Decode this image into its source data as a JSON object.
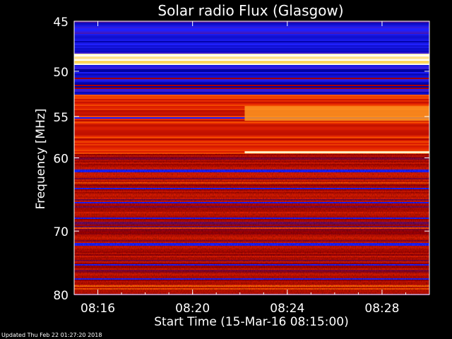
{
  "chart_data": {
    "type": "heatmap",
    "title": "Solar radio Flux (Glasgow)",
    "xlabel": "Start Time (15-Mar-16 08:15:00)",
    "ylabel_text": "Frequency",
    "ylabel_unit": "MHz",
    "x_ticks": [
      "08:16",
      "08:20",
      "08:24",
      "08:28"
    ],
    "x_tick_minutes": [
      16,
      20,
      24,
      28
    ],
    "xlim_minutes": [
      15.0,
      30.0
    ],
    "y_ticks": [
      45,
      50,
      55,
      60,
      70,
      80
    ],
    "ylim": [
      45,
      80
    ],
    "y_scale": "log",
    "grid": false,
    "colormap": [
      "#0000a0",
      "#2020ff",
      "#a00000",
      "#e02000",
      "#ff6000",
      "#ffd040",
      "#ffffff"
    ],
    "features": [
      {
        "kind": "band",
        "f1": 45.2,
        "f2": 48.2,
        "level": 0.12
      },
      {
        "kind": "band",
        "f1": 48.2,
        "f2": 49.4,
        "level": 0.95
      },
      {
        "kind": "band",
        "f1": 49.4,
        "f2": 52.6,
        "level": 0.1
      },
      {
        "kind": "band",
        "f1": 52.6,
        "f2": 53.0,
        "level": 0.55
      },
      {
        "kind": "band",
        "f1": 53.0,
        "f2": 59.5,
        "level": 0.5
      },
      {
        "kind": "band",
        "f1": 59.5,
        "f2": 80.0,
        "level": 0.38
      },
      {
        "kind": "step",
        "f1": 53.8,
        "f2": 55.5,
        "t_start": 22.2,
        "level": 0.75
      },
      {
        "kind": "line",
        "f": 59.3,
        "t_start": 22.2,
        "level": 0.95
      }
    ]
  },
  "footer": "Updated Thu Feb 22 01:27:20 2018"
}
